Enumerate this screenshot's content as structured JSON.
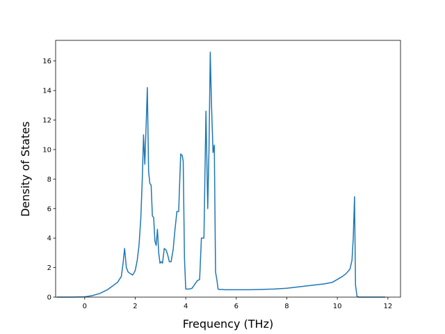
{
  "chart_data": {
    "type": "line",
    "title": "",
    "xlabel": "Frequency (THz)",
    "ylabel": "Density of States",
    "xlim": [
      -1.15,
      12.5
    ],
    "ylim": [
      0,
      17.4
    ],
    "xticks": [
      0,
      2,
      4,
      6,
      8,
      10,
      12
    ],
    "yticks": [
      0,
      2,
      4,
      6,
      8,
      10,
      12,
      14,
      16
    ],
    "grid": false,
    "color": "#1f77b4",
    "series": [
      {
        "x": [
          -1.1,
          -0.5,
          0.0,
          0.3,
          0.6,
          0.9,
          1.1,
          1.3,
          1.45,
          1.52,
          1.58,
          1.65,
          1.72,
          1.8,
          1.9,
          2.0,
          2.08,
          2.15,
          2.22,
          2.28,
          2.33,
          2.38,
          2.43,
          2.48,
          2.53,
          2.58,
          2.63,
          2.68,
          2.73,
          2.78,
          2.83,
          2.88,
          2.93,
          2.98,
          3.03,
          3.08,
          3.15,
          3.22,
          3.28,
          3.35,
          3.42,
          3.5,
          3.57,
          3.65,
          3.72,
          3.8,
          3.86,
          3.9,
          3.95,
          4.0,
          4.06,
          4.1,
          4.15,
          4.25,
          4.45,
          4.55,
          4.62,
          4.72,
          4.8,
          4.87,
          4.92,
          4.97,
          5.02,
          5.08,
          5.13,
          5.18,
          5.23,
          5.28,
          5.32,
          5.38,
          5.45,
          5.55,
          5.8,
          6.0,
          6.5,
          7.0,
          7.5,
          8.0,
          8.5,
          9.0,
          9.5,
          9.8,
          10.0,
          10.2,
          10.35,
          10.5,
          10.58,
          10.63,
          10.68,
          10.72,
          10.78,
          10.85,
          11.0,
          11.5,
          11.9
        ],
        "y": [
          0,
          0,
          0.02,
          0.1,
          0.25,
          0.5,
          0.75,
          1.0,
          1.4,
          2.3,
          3.3,
          2.0,
          1.7,
          1.6,
          1.5,
          1.8,
          2.5,
          3.5,
          5.3,
          8.0,
          11.0,
          9.0,
          11.5,
          14.2,
          8.5,
          7.7,
          7.6,
          5.5,
          5.4,
          3.8,
          3.5,
          4.6,
          3.0,
          2.3,
          2.4,
          2.3,
          3.3,
          3.2,
          2.9,
          2.4,
          2.4,
          3.2,
          4.5,
          5.8,
          5.8,
          9.7,
          9.6,
          9.2,
          2.6,
          0.55,
          0.55,
          0.55,
          0.55,
          0.6,
          1.1,
          1.2,
          4.0,
          4.0,
          12.6,
          6.0,
          10.0,
          16.6,
          13.0,
          9.8,
          10.3,
          1.7,
          1.2,
          0.55,
          0.52,
          0.52,
          0.52,
          0.5,
          0.5,
          0.5,
          0.5,
          0.52,
          0.55,
          0.6,
          0.7,
          0.8,
          0.9,
          1.0,
          1.2,
          1.4,
          1.6,
          1.9,
          2.5,
          4.0,
          6.8,
          0.8,
          0.05,
          0,
          0,
          0,
          0
        ]
      }
    ]
  }
}
